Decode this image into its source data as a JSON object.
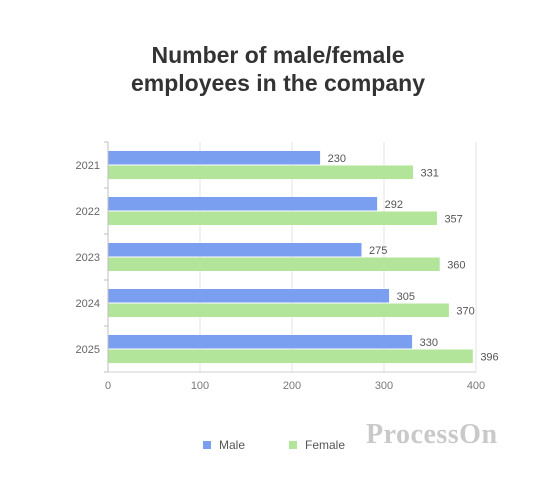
{
  "chart_data": {
    "type": "bar",
    "orientation": "horizontal",
    "title_lines": [
      "Number of male/female",
      "employees in the company"
    ],
    "categories": [
      "2021",
      "2022",
      "2023",
      "2024",
      "2025"
    ],
    "series": [
      {
        "name": "Male",
        "color": "#7b9ff0",
        "values": [
          230,
          292,
          275,
          305,
          330
        ]
      },
      {
        "name": "Female",
        "color": "#b2e59a",
        "values": [
          331,
          357,
          360,
          370,
          396
        ]
      }
    ],
    "xlim": [
      0,
      400
    ],
    "xticks": [
      "0",
      "100",
      "200",
      "300",
      "400"
    ],
    "grid": true,
    "legend_position": "bottom"
  },
  "watermark": "ProcessOn"
}
